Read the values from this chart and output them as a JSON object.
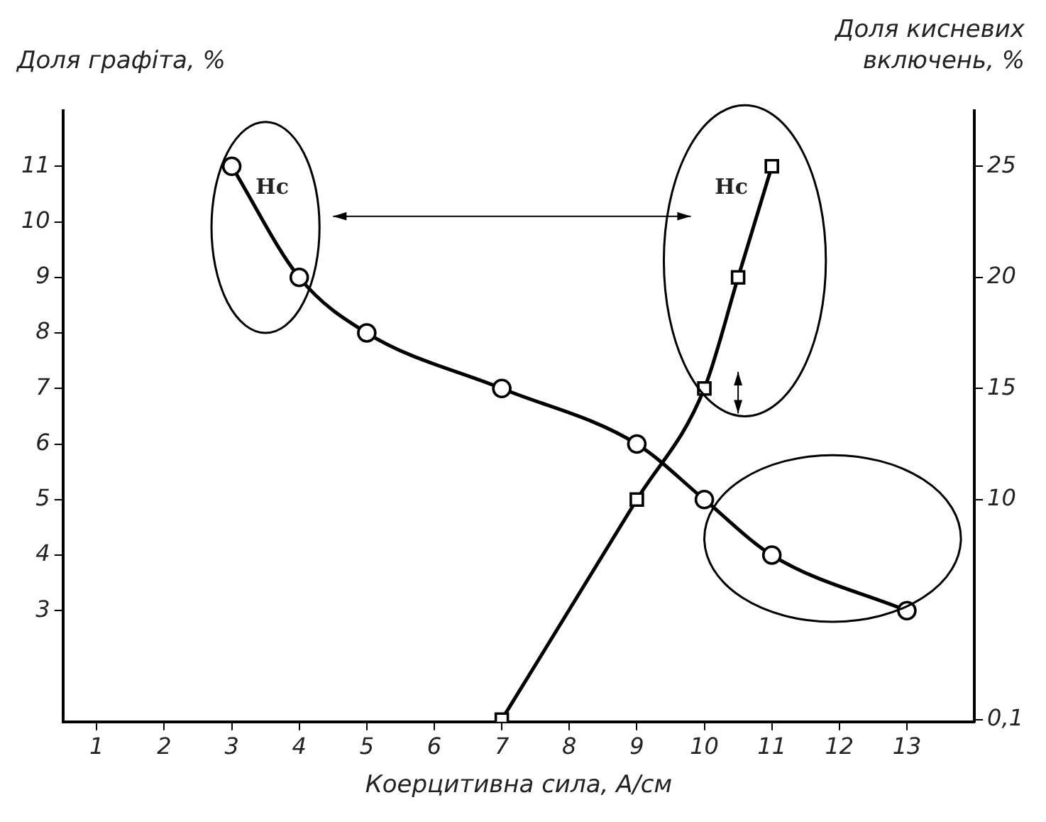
{
  "chart_data": {
    "type": "line",
    "xlabel": "Коерцитивна сила, А/см",
    "ylabel": "Доля графіта, %",
    "y2label": "Доля кисневих включень, %",
    "xlim": [
      0.5,
      14
    ],
    "xticks": [
      1,
      2,
      3,
      4,
      5,
      6,
      7,
      8,
      9,
      10,
      11,
      12,
      13
    ],
    "ylim": [
      1,
      12
    ],
    "yticks": [
      3,
      4,
      5,
      6,
      7,
      8,
      9,
      10,
      11
    ],
    "y2lim": [
      0,
      27.5
    ],
    "y2ticks": [
      {
        "value": 0.1,
        "label": "0,1"
      },
      10,
      15,
      20,
      25
    ],
    "grid": false,
    "legend": false,
    "line_style": "solid",
    "series": [
      {
        "color": "#000000",
        "marker": "circle",
        "x": [
          3,
          4,
          5,
          7,
          9,
          10,
          11,
          13
        ],
        "values": [
          11,
          9,
          8,
          7,
          6,
          5,
          4,
          3
        ]
      },
      {
        "color": "#000000",
        "marker": "square",
        "axis": "y2",
        "x": [
          7,
          9,
          10,
          10.5,
          11
        ],
        "values": [
          0.1,
          10,
          15,
          20,
          25
        ]
      }
    ],
    "annotations": [
      "Hc",
      "Hc"
    ]
  }
}
